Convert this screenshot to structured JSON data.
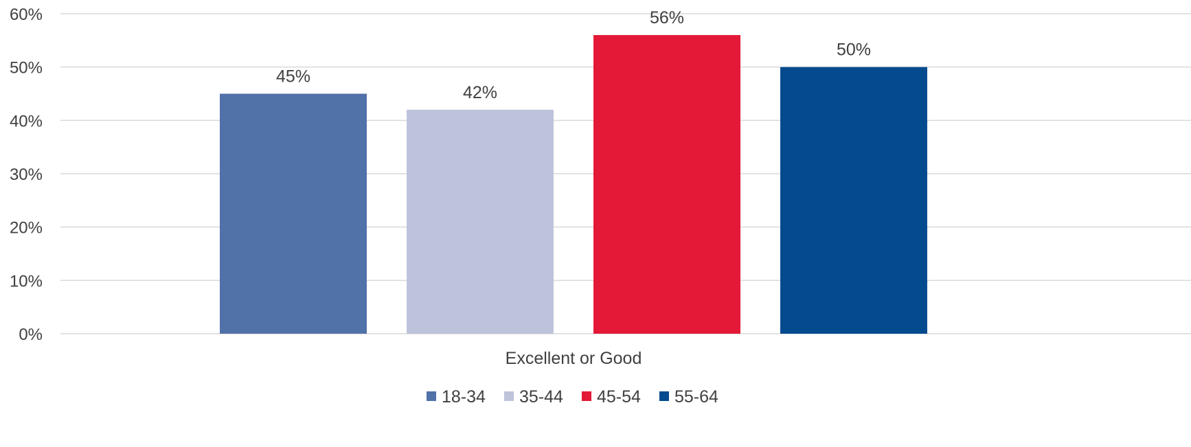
{
  "chart_data": {
    "type": "bar",
    "title": "",
    "xlabel": "",
    "ylabel": "",
    "categories": [
      "Excellent or Good"
    ],
    "series": [
      {
        "name": "18-34",
        "values": [
          45
        ],
        "label": "45%",
        "color": "#5171a9"
      },
      {
        "name": "35-44",
        "values": [
          42
        ],
        "label": "42%",
        "color": "#bec3dc"
      },
      {
        "name": "45-54",
        "values": [
          56
        ],
        "label": "56%",
        "color": "#e31937"
      },
      {
        "name": "55-64",
        "values": [
          50
        ],
        "label": "50%",
        "color": "#034a8f"
      }
    ],
    "ylim": [
      0,
      60
    ],
    "yticks": [
      {
        "value": 0,
        "label": "0%"
      },
      {
        "value": 10,
        "label": "10%"
      },
      {
        "value": 20,
        "label": "20%"
      },
      {
        "value": 30,
        "label": "30%"
      },
      {
        "value": 40,
        "label": "40%"
      },
      {
        "value": 50,
        "label": "50%"
      },
      {
        "value": 60,
        "label": "60%"
      }
    ],
    "grid": true,
    "legend_position": "bottom"
  }
}
